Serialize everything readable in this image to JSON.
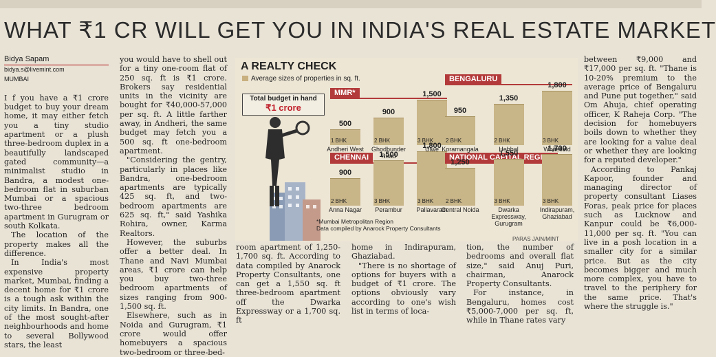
{
  "headline": "WHAT ₹1 CR WILL GET YOU IN INDIA'S REAL ESTATE MARKET",
  "byline": {
    "name": "Bidya Sapam",
    "email": "bidya.s@livemint.com",
    "location": "MUMBAI"
  },
  "col1": [
    "I f you have a ₹1 crore budget to buy your dream home, it may either fetch you a tiny studio apartment or a plush three-bedroom duplex in a beautifully landscaped gated community—a minimalist studio in Bandra, a modest one-bedroom flat in suburban Mumbai or a spacious two-three bedroom apartment in Gurugram or south Kolkata.",
    "The location of the property makes all the difference.",
    "In India's most expensive property market, Mumbai, finding a decent home for ₹1 crore is a tough ask within the city limits. In Bandra, one of the most sought-after neighbourhoods and home to several Bollywood stars, the least"
  ],
  "col2": [
    "you would have to shell out for a tiny one-room flat of 250 sq. ft is ₹1 crore. Brokers say residential units in the vicinity are bought for ₹40,000-57,000 per sq. ft. A little farther away, in Andheri, the same budget may fetch you a 500 sq. ft one-bedroom apartment.",
    "\"Considering the gentry, particularly in places like Bandra, one-bedroom apartments are typically 425 sq. ft, and two-bedroom apartments are 625 sq. ft,\" said Yashika Rohira, owner, Karma Realtors.",
    "However, the suburbs offer a better deal. In Thane and Navi Mumbai areas, ₹1 crore can help you buy two-three bedroom apartments of sizes ranging from 900-1,500 sq. ft.",
    "Elsewhere, such as in Noida and Gurugram, ₹1 crore would offer homebuyers a spacious two-bedroom or three-bed-"
  ],
  "col3": [
    "room apartment of 1,250-1,700 sq. ft. According to data compiled by Anarock Property Consultants, one can get a 1,550 sq. ft three-bedroom apartment off the Dwarka Expressway or a 1,700 sq. ft"
  ],
  "col4": [
    "home in Indirapuram, Ghaziabad.",
    "\"There is no shortage of options for buyers with a budget of ₹1 crore. The options obviously vary according to one's wish list in terms of loca-"
  ],
  "col5": [
    "tion, the number of bedrooms and overall flat size,\" said Anuj Puri, chairman, Anarock Property Consultants.",
    "For instance, in Bengaluru, homes cost ₹5,000-7,000 per sq. ft, while in Thane rates vary"
  ],
  "col6": [
    "between ₹9,000 and ₹17,000 per sq. ft. \"Thane is 10-20% premium to the average price of Bengaluru and Pune put together,\" said Om Ahuja, chief operating officer, K Raheja Corp. \"The decision for homebuyers boils down to whether they are looking for a value deal or whether they are looking for a reputed developer.\"",
    "According to Pankaj Kapoor, founder and managing director of property consultant Liases Foras, peak price for places such as Lucknow and Kanpur could be ₹6,000-11,000 per sq. ft. \"You can live in a posh location in a smaller city for a similar price. But as the city becomes bigger and much more complex, you have to travel to the periphery for the same price. That's where the struggle is.\""
  ],
  "infographic": {
    "title": "A REALTY CHECK",
    "legend": "Average sizes of properties in sq. ft.",
    "budget_label": "Total budget in hand",
    "budget_value": "₹1 crore",
    "footnote_1": "*Mumbai Metropolitan Region",
    "footnote_2": "Data compiled by Anarock Property Consultants",
    "credit": "PARAS JAIN/MINT",
    "colors": {
      "bar": "#c8b588",
      "region": "#b33a3a",
      "budget": "#c0202b"
    }
  },
  "chart_data": {
    "type": "bar",
    "title": "A REALTY CHECK",
    "regions": [
      {
        "name": "MMR*",
        "bars": [
          {
            "bhk": "1 BHK",
            "location": "Andheri West",
            "value": 500
          },
          {
            "bhk": "2 BHK",
            "location": "Ghodbunder Road",
            "value": 900
          },
          {
            "bhk": "3 BHK",
            "location": "Ulwe",
            "value": 1500
          }
        ]
      },
      {
        "name": "BENGALURU",
        "bars": [
          {
            "bhk": "2 BHK",
            "location": "Koramangala",
            "value": 950
          },
          {
            "bhk": "2 BHK",
            "location": "Hebbal",
            "value": 1350
          },
          {
            "bhk": "3 BHK",
            "location": "Whitefield",
            "value": 1800
          }
        ]
      },
      {
        "name": "CHENNAI",
        "bars": [
          {
            "bhk": "2 BHK",
            "location": "Anna Nagar",
            "value": 900
          },
          {
            "bhk": "3 BHK",
            "location": "Perambur",
            "value": 1500
          },
          {
            "bhk": "3 BHK",
            "location": "Pallavaram",
            "value": 1800
          }
        ]
      },
      {
        "name": "NATIONAL CAPITAL REGION",
        "bars": [
          {
            "bhk": "2 BHK",
            "location": "Central Noida",
            "value": 1250
          },
          {
            "bhk": "3 BHK",
            "location": "Dwarka Expressway, Gurugram",
            "value": 1550
          },
          {
            "bhk": "3 BHK",
            "location": "Indirapuram, Ghaziabad",
            "value": 1700
          }
        ]
      }
    ]
  }
}
